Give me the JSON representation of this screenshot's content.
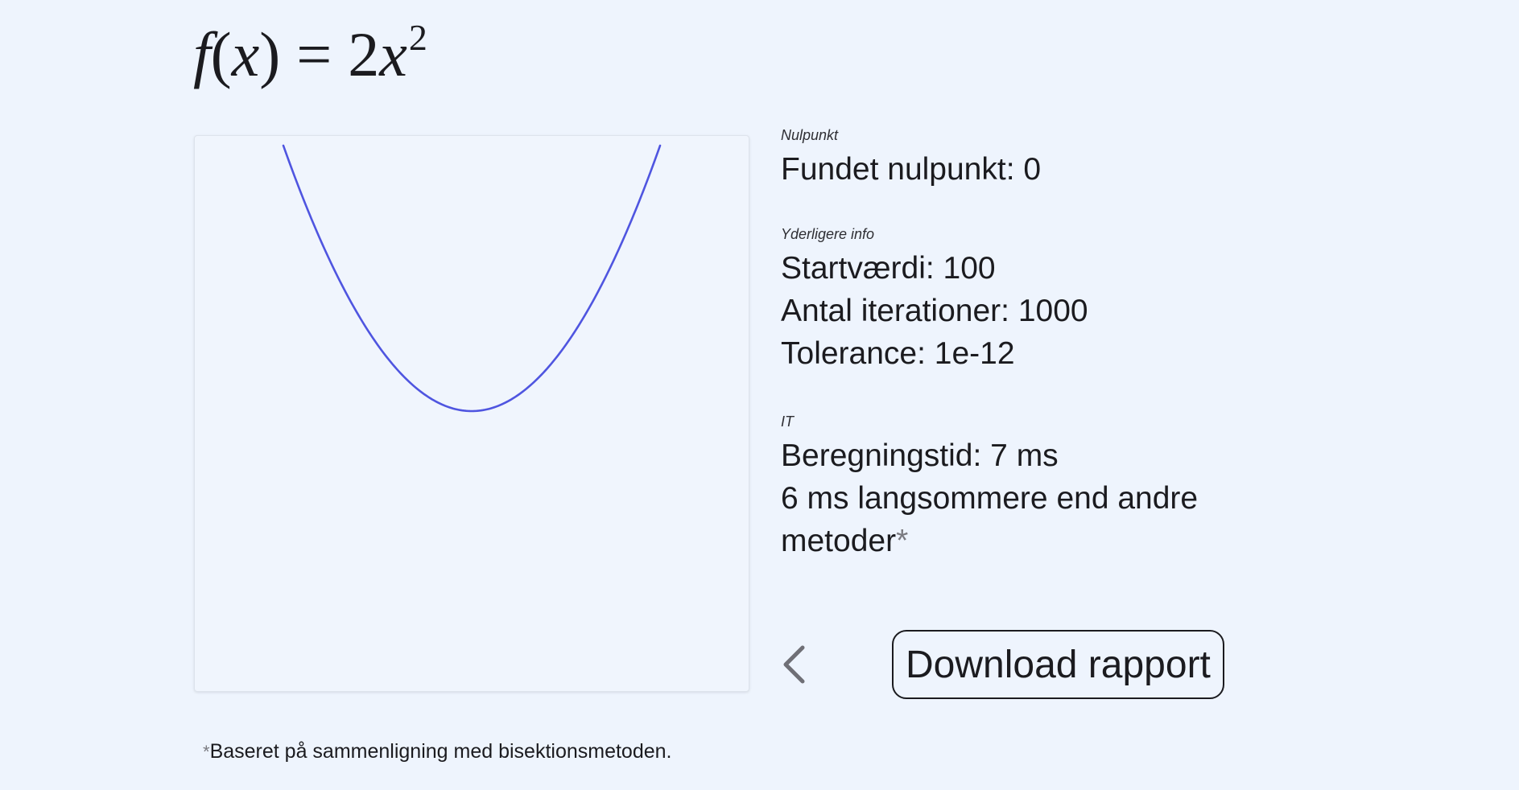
{
  "formula": {
    "fname": "f",
    "var": "x",
    "equals": "=",
    "coef": "2",
    "base": "x",
    "exponent": "2"
  },
  "chart_data": {
    "type": "line",
    "function": "2x^2",
    "color": "#4f55e0",
    "background": "#f0f5fd",
    "grid": false,
    "axes_visible": false,
    "x_range": [
      -10,
      10
    ],
    "y_range": [
      0,
      200
    ],
    "series": [
      {
        "x": [
          -10,
          -8,
          -6,
          -4,
          -2,
          0,
          2,
          4,
          6,
          8,
          10
        ],
        "y": [
          200,
          128,
          72,
          32,
          8,
          0,
          8,
          32,
          72,
          128,
          200
        ]
      }
    ]
  },
  "info": {
    "root": {
      "label": "Nulpunkt",
      "text": "Fundet nulpunkt: 0"
    },
    "details": {
      "label": "Yderligere info",
      "start": "Startværdi: 100",
      "iterations": "Antal iterationer: 1000",
      "tolerance": "Tolerance: 1e-12"
    },
    "it": {
      "label": "IT",
      "time": "Beregningstid: 7 ms",
      "comparison": "6 ms langsommere end andre metoder",
      "asterisk": "*"
    }
  },
  "actions": {
    "back_icon": "chevron-left-icon",
    "download_label": "Download rapport"
  },
  "footnote": {
    "asterisk": "*",
    "text": "Baseret på sammenligning med bisektionsmetoden."
  }
}
